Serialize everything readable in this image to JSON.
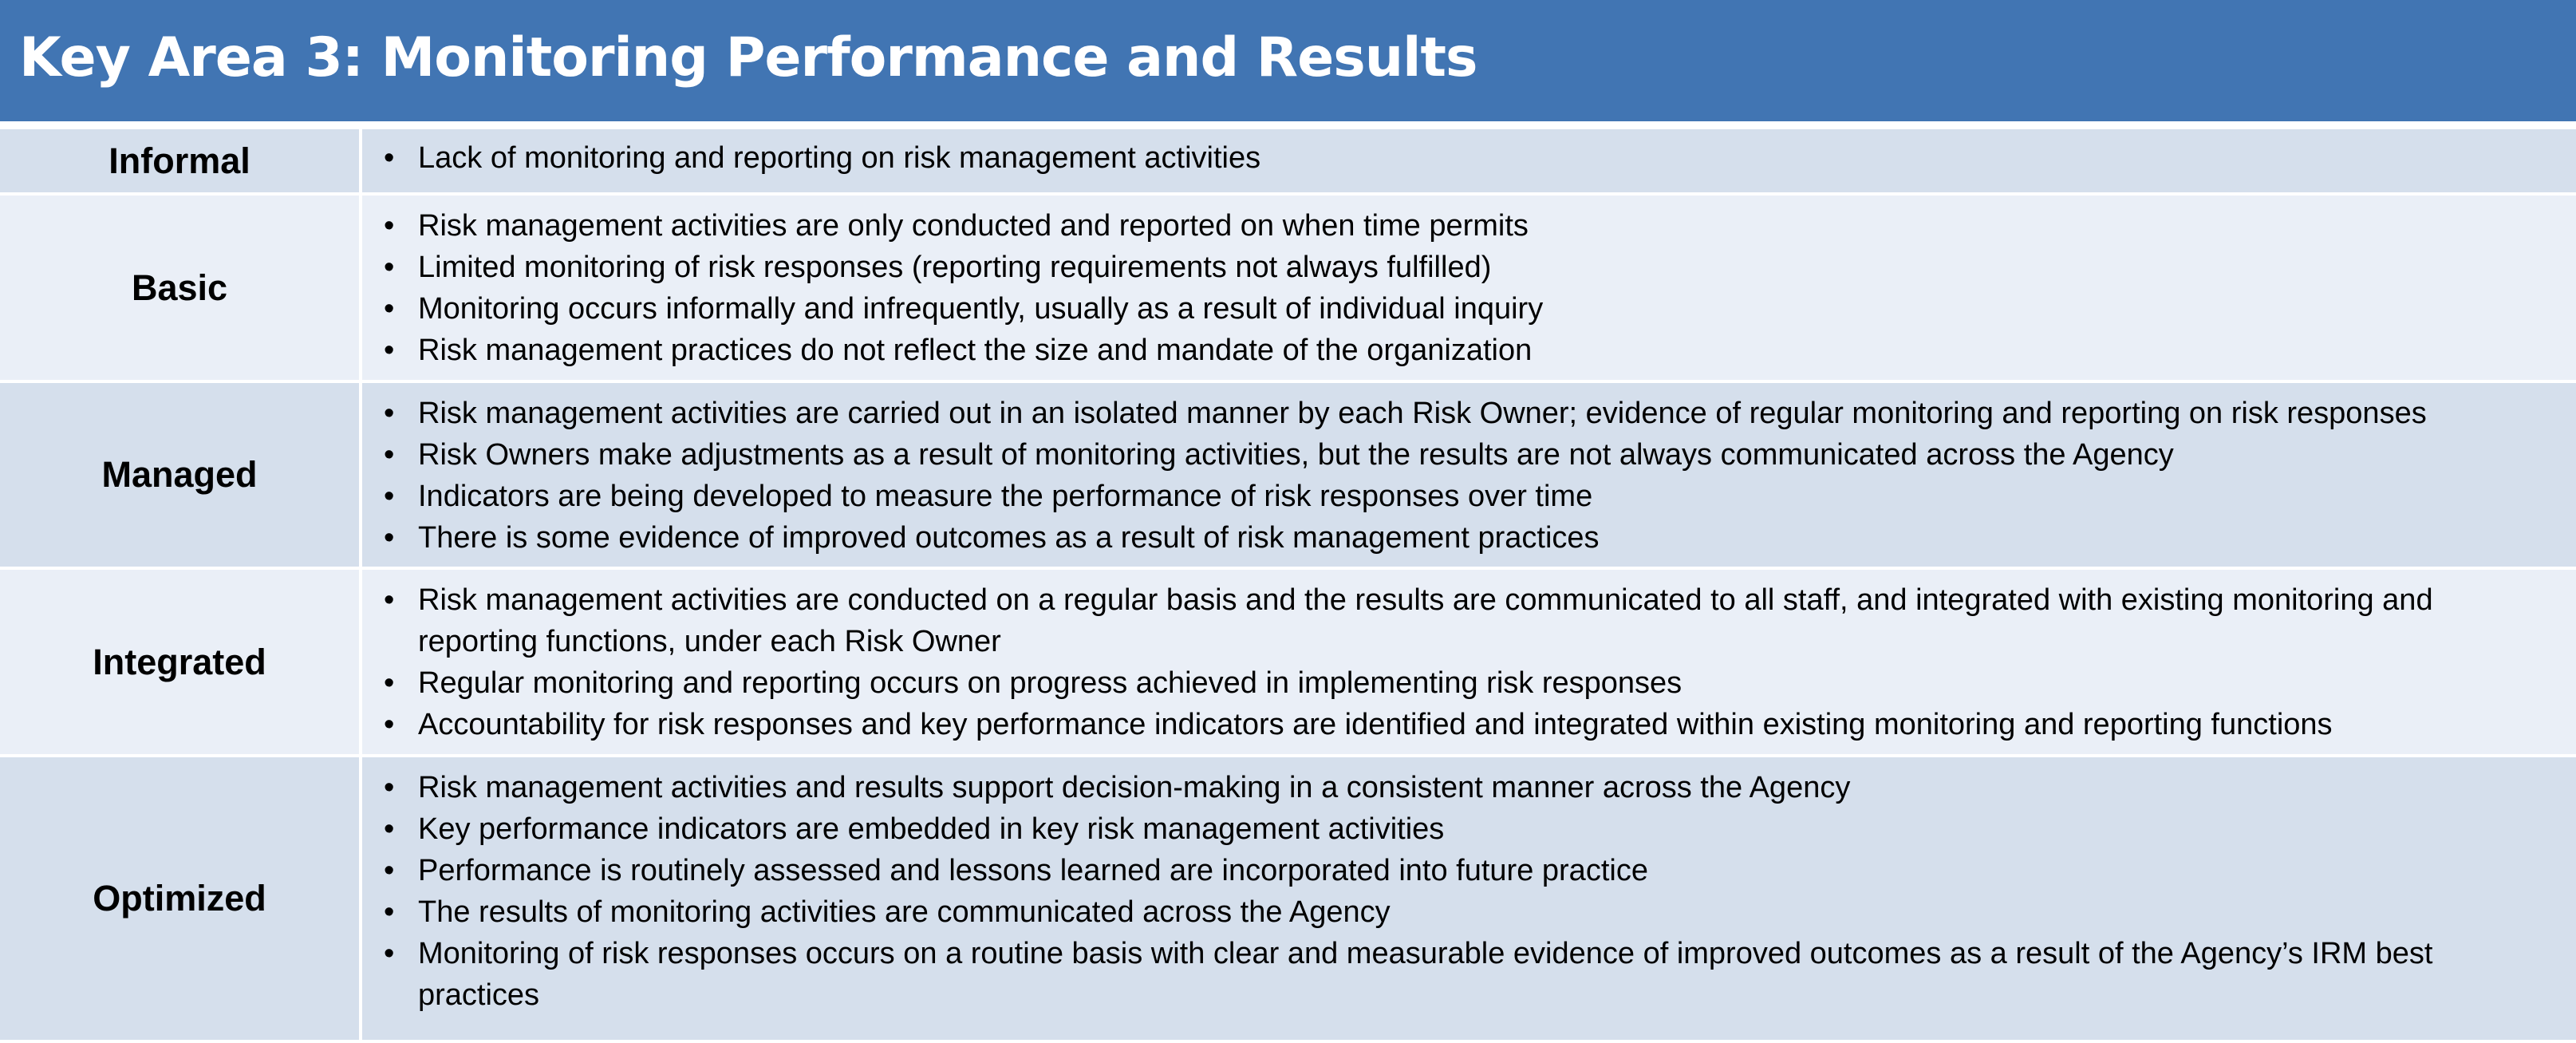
{
  "title": "Key Area 3: Monitoring Performance and Results",
  "colors": {
    "header_bg": "#4175b3",
    "header_text": "#ffffff",
    "row_dark": "#d5dfec",
    "row_light": "#eaeff7"
  },
  "levels": [
    {
      "name": "Informal",
      "items": [
        "Lack of monitoring and reporting on risk management activities"
      ]
    },
    {
      "name": "Basic",
      "items": [
        "Risk management activities are only conducted and reported on when time permits",
        "Limited monitoring of risk responses (reporting requirements not always fulfilled)",
        "Monitoring occurs informally and infrequently, usually as a result of individual inquiry",
        "Risk management practices do not reflect the size and mandate of the organization"
      ]
    },
    {
      "name": "Managed",
      "items": [
        "Risk management activities are carried out in an isolated manner by each Risk Owner; evidence of regular monitoring and reporting on risk responses",
        "Risk Owners make adjustments as a result of monitoring activities, but the results are not always communicated across the Agency",
        "Indicators are being developed to measure the performance of risk responses over time",
        "There is some evidence of improved outcomes as a result of risk management practices"
      ]
    },
    {
      "name": "Integrated",
      "items": [
        "Risk management activities are conducted on a regular basis and the results are communicated to all staff, and integrated with existing monitoring and reporting functions, under each Risk Owner",
        "Regular monitoring and reporting occurs on progress achieved in implementing risk responses",
        "Accountability for risk responses and key performance indicators are identified and integrated within existing monitoring and reporting functions"
      ]
    },
    {
      "name": "Optimized",
      "items": [
        "Risk management activities and results support decision-making in a consistent manner across the Agency",
        "Key performance indicators are embedded in key risk management activities",
        "Performance is routinely assessed and lessons learned are incorporated into future practice",
        "The results of monitoring activities are communicated across the Agency",
        "Monitoring of risk responses occurs on a routine basis with clear and measurable evidence of improved outcomes as a result of the Agency’s IRM best practices"
      ]
    }
  ]
}
